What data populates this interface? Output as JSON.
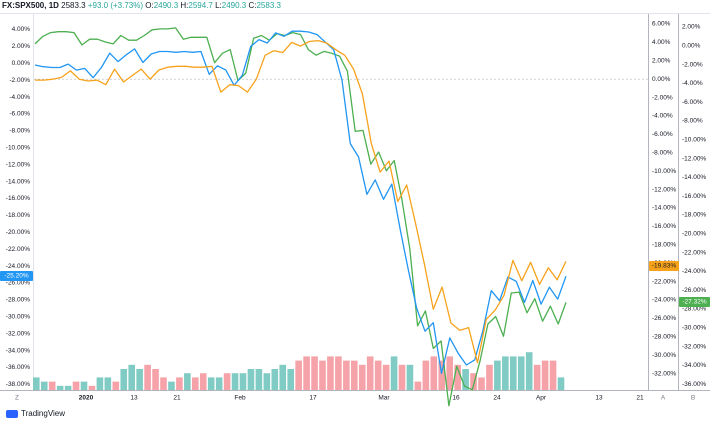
{
  "header": {
    "symbol": "FX:SPX500, 1D",
    "last": "2583.3",
    "change": "+93.0 (+3.73%)",
    "o_label": "O:",
    "o": "2490.3",
    "h_label": "H:",
    "h": "2594.7",
    "l_label": "L:",
    "l": "2490.3",
    "c_label": "C:",
    "c": "2583.3"
  },
  "branding": {
    "name": "TradingView"
  },
  "colors": {
    "blue": "#2196f3",
    "orange": "#f7a21b",
    "green": "#4caf50",
    "vol_up": "#80cbc4",
    "vol_down": "#f5a3a8"
  },
  "chart_data": {
    "type": "line",
    "x_ticks": [
      "2020",
      "13",
      "21",
      "Feb",
      "17",
      "Mar",
      "16",
      "24",
      "Apr",
      "13",
      "21"
    ],
    "axis_corner_left": "Z",
    "axis_corner_mid": "A",
    "axis_corner_right": "B",
    "left_axis": {
      "range": [
        -39,
        5
      ],
      "ticks": [
        "4.00%",
        "2.00%",
        "0.00%",
        "-2.00%",
        "-4.00%",
        "-6.00%",
        "-8.00%",
        "-10.00%",
        "-12.00%",
        "-14.00%",
        "-16.00%",
        "-18.00%",
        "-20.00%",
        "-22.00%",
        "-24.00%",
        "-26.00%",
        "-28.00%",
        "-30.00%",
        "-32.00%",
        "-34.00%",
        "-36.00%",
        "-38.00%"
      ],
      "tick_values": [
        4,
        2,
        0,
        -2,
        -4,
        -6,
        -8,
        -10,
        -12,
        -14,
        -16,
        -18,
        -20,
        -22,
        -24,
        -26,
        -28,
        -30,
        -32,
        -34,
        -36,
        -38
      ],
      "badge": "-25.20%"
    },
    "mid_axis": {
      "ticks": [
        "6.00%",
        "4.00%",
        "2.00%",
        "0.00%",
        "-2.00%",
        "-4.00%",
        "-6.00%",
        "-8.00%",
        "-10.00%",
        "-12.00%",
        "-14.00%",
        "-16.00%",
        "-18.00%",
        "-20.00%",
        "-22.00%",
        "-24.00%",
        "-26.00%",
        "-28.00%",
        "-30.00%",
        "-32.00%"
      ],
      "tick_values": [
        6,
        4,
        2,
        0,
        -2,
        -4,
        -6,
        -8,
        -10,
        -12,
        -14,
        -16,
        -18,
        -20,
        -22,
        -24,
        -26,
        -28,
        -30,
        -32
      ],
      "badge": "-19.83%"
    },
    "right_axis": {
      "ticks": [
        "2.00%",
        "0.00%",
        "-2.00%",
        "-4.00%",
        "-6.00%",
        "-8.00%",
        "-10.00%",
        "-12.00%",
        "-14.00%",
        "-16.00%",
        "-18.00%",
        "-20.00%",
        "-22.00%",
        "-24.00%",
        "-26.00%",
        "-28.00%",
        "-30.00%",
        "-32.00%",
        "-34.00%",
        "-36.00%"
      ],
      "tick_values": [
        2,
        0,
        -2,
        -4,
        -6,
        -8,
        -10,
        -12,
        -14,
        -16,
        -18,
        -20,
        -22,
        -24,
        -26,
        -28,
        -30,
        -32,
        -34,
        -36
      ],
      "badge": "-27.32%"
    },
    "series": [
      {
        "color": "#4caf50",
        "axis": "right",
        "values": [
          0.2,
          1.0,
          1.4,
          1.5,
          1.5,
          1.4,
          0.1,
          0.7,
          0.7,
          0.4,
          0.2,
          1.1,
          0.6,
          0.6,
          1.1,
          1.7,
          1.8,
          1.8,
          1.9,
          0.7,
          0.9,
          0.9,
          0.9,
          -1.8,
          -0.8,
          -0.4,
          -3.7,
          -2.9,
          0.8,
          1.1,
          0.6,
          1.3,
          1.1,
          1.4,
          1.2,
          -0.4,
          -1.0,
          -0.6,
          -0.8,
          -1.1,
          -2.7,
          -9.1,
          -9.0,
          -12.6,
          -11.3,
          -13.3,
          -12.2,
          -16.4,
          -21.6,
          -29.8,
          -28.2,
          -32.2,
          -31.4,
          -38.3,
          -34.1,
          -36.2,
          -36.6,
          -33.5,
          -29.6,
          -28.8,
          -30.9,
          -26.3,
          -26.2,
          -28.4,
          -26.9,
          -29.3,
          -27.7,
          -29.6,
          -27.3
        ]
      },
      {
        "color": "#2196f3",
        "axis": "left",
        "values": [
          -0.2,
          -0.4,
          -0.5,
          -0.5,
          -0.1,
          -0.8,
          -0.6,
          -1.7,
          -0.5,
          1.2,
          0.2,
          1.0,
          1.7,
          0.1,
          1.1,
          1.4,
          1.4,
          1.3,
          1.4,
          1.3,
          1.4,
          -1.3,
          -0.3,
          -0.8,
          -2.6,
          -1.4,
          2.0,
          2.8,
          2.4,
          3.6,
          3.2,
          3.8,
          3.8,
          3.7,
          3.4,
          2.5,
          1.6,
          -2.0,
          -9.5,
          -11.1,
          -15.5,
          -13.8,
          -16.1,
          -14.3,
          -19.6,
          -24.5,
          -29.0,
          -31.7,
          -30.7,
          -36.7,
          -32.5,
          -34.3,
          -35.7,
          -35.1,
          -31.6,
          -26.9,
          -28.1,
          -25.3,
          -25.8,
          -28.3,
          -25.7,
          -28.5,
          -26.5,
          -27.9,
          -25.2
        ]
      },
      {
        "color": "#f7a21b",
        "axis": "mid",
        "values": [
          -0.1,
          -0.1,
          0.0,
          0.2,
          0.9,
          0.0,
          -0.2,
          -0.1,
          -0.6,
          1.1,
          -0.3,
          0.4,
          1.1,
          0.0,
          1.0,
          1.3,
          1.4,
          1.4,
          1.3,
          1.3,
          1.4,
          -1.4,
          -0.6,
          -0.7,
          -1.4,
          0.0,
          2.6,
          3.1,
          2.9,
          4.0,
          3.6,
          4.1,
          4.2,
          3.9,
          3.2,
          2.6,
          1.1,
          -1.6,
          -7.0,
          -10.1,
          -8.9,
          -13.3,
          -11.5,
          -15.7,
          -20.1,
          -25.0,
          -22.6,
          -26.5,
          -27.3,
          -27.0,
          -30.8,
          -26.1,
          -25.1,
          -23.5,
          -19.7,
          -21.9,
          -19.9,
          -22.3,
          -20.5,
          -21.8,
          -19.8
        ]
      },
      {
        "type": "bar",
        "colors": [
          "up",
          "up",
          "down",
          "up",
          "up",
          "down",
          "up",
          "down",
          "up",
          "up",
          "down",
          "up",
          "up",
          "up",
          "down",
          "down",
          "down",
          "up",
          "down",
          "up",
          "down",
          "down",
          "up",
          "up",
          "down",
          "up",
          "up",
          "up",
          "up",
          "up",
          "up",
          "up",
          "up",
          "down",
          "down",
          "down",
          "down",
          "down",
          "down",
          "down",
          "down",
          "down",
          "down",
          "down",
          "down",
          "up",
          "down",
          "up",
          "down",
          "down",
          "down",
          "down",
          "down",
          "down",
          "up",
          "down",
          "down",
          "down",
          "up",
          "up",
          "up",
          "up",
          "up",
          "down",
          "down",
          "down",
          "up"
        ],
        "values": [
          3,
          2,
          2,
          1,
          1,
          2,
          2,
          1,
          3,
          3,
          2,
          5,
          6,
          5,
          6,
          5,
          3,
          2,
          3,
          4,
          3,
          4,
          3,
          3,
          4,
          4,
          4,
          5,
          5,
          4,
          5,
          6,
          5,
          7,
          8,
          8,
          7,
          8,
          8,
          7,
          7,
          6,
          8,
          7,
          6,
          8,
          6,
          6,
          2,
          7,
          8,
          7,
          8,
          6,
          5,
          4,
          3,
          6,
          7,
          8,
          8,
          8,
          9,
          6,
          7,
          7,
          3
        ]
      }
    ]
  }
}
